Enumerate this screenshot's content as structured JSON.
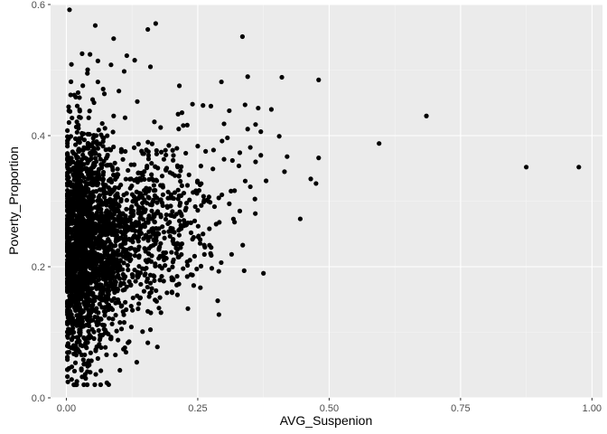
{
  "chart_data": {
    "type": "scatter",
    "title": "",
    "xlabel": "AVG_Suspenion",
    "ylabel": "Poverty_Proportion",
    "xlim": [
      -0.03,
      1.02
    ],
    "ylim": [
      0.0,
      0.6
    ],
    "x_ticks": [
      0.0,
      0.25,
      0.5,
      0.75,
      1.0
    ],
    "x_tick_labels": [
      "0.00",
      "0.25",
      "0.50",
      "0.75",
      "1.00"
    ],
    "y_ticks": [
      0.0,
      0.2,
      0.4,
      0.6
    ],
    "y_tick_labels": [
      "0.0",
      "0.2",
      "0.4",
      "0.6"
    ],
    "grid": true,
    "legend": "none",
    "colors": {
      "panel": "#ebebeb",
      "grid_major": "#ffffff",
      "grid_minor": "#f5f5f5",
      "point": "#000000",
      "tick": "#333333"
    },
    "points": [
      [
        0.006,
        0.592
      ],
      [
        0.055,
        0.568
      ],
      [
        0.17,
        0.571
      ],
      [
        0.155,
        0.562
      ],
      [
        0.09,
        0.548
      ],
      [
        0.335,
        0.551
      ],
      [
        0.03,
        0.525
      ],
      [
        0.045,
        0.524
      ],
      [
        0.115,
        0.522
      ],
      [
        0.13,
        0.515
      ],
      [
        0.06,
        0.514
      ],
      [
        0.085,
        0.508
      ],
      [
        0.16,
        0.505
      ],
      [
        0.04,
        0.495
      ],
      [
        0.11,
        0.498
      ],
      [
        0.345,
        0.49
      ],
      [
        0.41,
        0.489
      ],
      [
        0.48,
        0.485
      ],
      [
        0.295,
        0.482
      ],
      [
        0.06,
        0.482
      ],
      [
        0.215,
        0.476
      ],
      [
        0.07,
        0.471
      ],
      [
        0.1,
        0.468
      ],
      [
        0.015,
        0.462
      ],
      [
        0.025,
        0.458
      ],
      [
        0.05,
        0.455
      ],
      [
        0.135,
        0.452
      ],
      [
        0.26,
        0.446
      ],
      [
        0.275,
        0.445
      ],
      [
        0.24,
        0.448
      ],
      [
        0.34,
        0.447
      ],
      [
        0.365,
        0.442
      ],
      [
        0.39,
        0.44
      ],
      [
        0.31,
        0.438
      ],
      [
        0.22,
        0.435
      ],
      [
        0.09,
        0.43
      ],
      [
        0.685,
        0.43
      ],
      [
        0.02,
        0.421
      ],
      [
        0.005,
        0.42
      ],
      [
        0.3,
        0.418
      ],
      [
        0.36,
        0.417
      ],
      [
        0.23,
        0.416
      ],
      [
        0.345,
        0.41
      ],
      [
        0.37,
        0.406
      ],
      [
        0.405,
        0.399
      ],
      [
        0.595,
        0.388
      ],
      [
        0.195,
        0.385
      ],
      [
        0.25,
        0.384
      ],
      [
        0.35,
        0.382
      ],
      [
        0.28,
        0.378
      ],
      [
        0.265,
        0.376
      ],
      [
        0.33,
        0.374
      ],
      [
        0.37,
        0.37
      ],
      [
        0.42,
        0.368
      ],
      [
        0.48,
        0.366
      ],
      [
        0.3,
        0.364
      ],
      [
        0.36,
        0.36
      ],
      [
        0.875,
        0.352
      ],
      [
        0.975,
        0.352
      ],
      [
        0.415,
        0.345
      ],
      [
        0.465,
        0.334
      ],
      [
        0.475,
        0.327
      ],
      [
        0.38,
        0.331
      ],
      [
        0.35,
        0.322
      ],
      [
        0.32,
        0.316
      ],
      [
        0.29,
        0.305
      ],
      [
        0.27,
        0.3
      ],
      [
        0.31,
        0.296
      ],
      [
        0.25,
        0.286
      ],
      [
        0.33,
        0.285
      ],
      [
        0.32,
        0.268
      ],
      [
        0.2,
        0.278
      ],
      [
        0.445,
        0.273
      ],
      [
        0.215,
        0.27
      ],
      [
        0.285,
        0.265
      ],
      [
        0.26,
        0.25
      ],
      [
        0.24,
        0.242
      ],
      [
        0.22,
        0.235
      ],
      [
        0.2,
        0.222
      ],
      [
        0.235,
        0.21
      ],
      [
        0.29,
        0.193
      ],
      [
        0.375,
        0.19
      ],
      [
        0.23,
        0.185
      ],
      [
        0.21,
        0.172
      ],
      [
        0.255,
        0.168
      ],
      [
        0.16,
        0.175
      ],
      [
        0.14,
        0.152
      ],
      [
        0.18,
        0.13
      ],
      [
        0.155,
        0.132
      ],
      [
        0.16,
        0.104
      ],
      [
        0.155,
        0.084
      ],
      [
        0.145,
        0.101
      ],
      [
        0.11,
        0.115
      ],
      [
        0.085,
        0.09
      ],
      [
        0.06,
        0.06
      ],
      [
        0.04,
        0.04
      ],
      [
        0.02,
        0.025
      ],
      [
        0.03,
        0.032
      ],
      [
        0.01,
        0.028
      ],
      [
        0.015,
        0.02
      ],
      [
        0.005,
        0.045
      ],
      [
        0.025,
        0.07
      ]
    ],
    "dense_cloud": [
      {
        "x_center": 0.03,
        "x_spread": 0.035,
        "y_center": 0.215,
        "y_spread": 0.075,
        "count": 1500
      },
      {
        "x_center": 0.1,
        "x_spread": 0.045,
        "y_center": 0.25,
        "y_spread": 0.065,
        "count": 420
      },
      {
        "x_center": 0.17,
        "x_spread": 0.05,
        "y_center": 0.27,
        "y_spread": 0.06,
        "count": 200
      },
      {
        "x_center": 0.22,
        "x_spread": 0.06,
        "y_center": 0.29,
        "y_spread": 0.06,
        "count": 110
      },
      {
        "x_center": 0.03,
        "x_spread": 0.03,
        "y_center": 0.36,
        "y_spread": 0.045,
        "count": 180
      }
    ]
  }
}
